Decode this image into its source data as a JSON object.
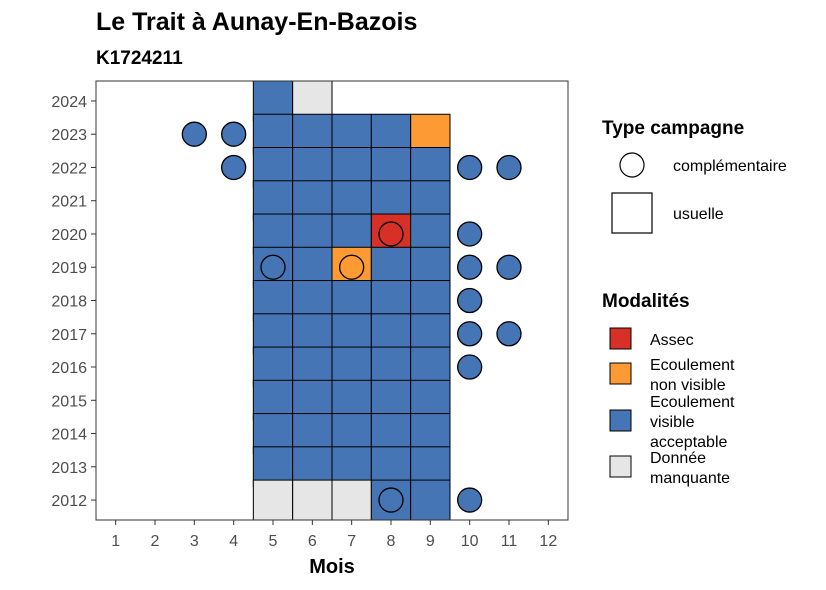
{
  "chart_data": {
    "type": "heatmap",
    "title": "Le Trait à Aunay-En-Bazois",
    "subtitle": "K1724211",
    "xlabel": "Mois",
    "ylabel": "",
    "x_ticks": [
      "1",
      "2",
      "3",
      "4",
      "5",
      "6",
      "7",
      "8",
      "9",
      "10",
      "11",
      "12"
    ],
    "y_ticks": [
      "2024",
      "2023",
      "2022",
      "2021",
      "2020",
      "2019",
      "2018",
      "2017",
      "2016",
      "2015",
      "2014",
      "2013",
      "2012"
    ],
    "xlim": [
      0.5,
      12.5
    ],
    "ylim": [
      2011.4,
      2024.6
    ],
    "grid": false,
    "legend_placement": "right",
    "legends": {
      "campaign": {
        "title": "Type campagne",
        "items": [
          {
            "key": "complementaire",
            "label": "complémentaire",
            "shape": "circle"
          },
          {
            "key": "usuelle",
            "label": "usuelle",
            "shape": "square"
          }
        ]
      },
      "modalities": {
        "title": "Modalités",
        "items": [
          {
            "key": "assec",
            "lines": [
              "Assec"
            ],
            "color": "#d73027"
          },
          {
            "key": "ecoulement_non_visible",
            "lines": [
              "Ecoulement",
              "non visible"
            ],
            "color": "#fd9a34"
          },
          {
            "key": "ecoulement_visible_acceptable",
            "lines": [
              "Ecoulement",
              "visible",
              "acceptable"
            ],
            "color": "#4575b4"
          },
          {
            "key": "donnee_manquante",
            "lines": [
              "Donnée",
              "manquante"
            ],
            "color": "#e6e6e6"
          }
        ]
      }
    },
    "usuelle": [
      {
        "year": 2024,
        "months": {
          "5": "ecoulement_visible_acceptable",
          "6": "donnee_manquante"
        }
      },
      {
        "year": 2023,
        "months": {
          "5": "ecoulement_visible_acceptable",
          "6": "ecoulement_visible_acceptable",
          "7": "ecoulement_visible_acceptable",
          "8": "ecoulement_visible_acceptable",
          "9": "ecoulement_non_visible"
        }
      },
      {
        "year": 2022,
        "months": {
          "5": "ecoulement_visible_acceptable",
          "6": "ecoulement_visible_acceptable",
          "7": "ecoulement_visible_acceptable",
          "8": "ecoulement_visible_acceptable",
          "9": "ecoulement_visible_acceptable"
        }
      },
      {
        "year": 2021,
        "months": {
          "5": "ecoulement_visible_acceptable",
          "6": "ecoulement_visible_acceptable",
          "7": "ecoulement_visible_acceptable",
          "8": "ecoulement_visible_acceptable",
          "9": "ecoulement_visible_acceptable"
        }
      },
      {
        "year": 2020,
        "months": {
          "5": "ecoulement_visible_acceptable",
          "6": "ecoulement_visible_acceptable",
          "7": "ecoulement_visible_acceptable",
          "8": "assec",
          "9": "ecoulement_visible_acceptable"
        }
      },
      {
        "year": 2019,
        "months": {
          "5": "ecoulement_visible_acceptable",
          "6": "ecoulement_visible_acceptable",
          "7": "ecoulement_non_visible",
          "8": "ecoulement_visible_acceptable",
          "9": "ecoulement_visible_acceptable"
        }
      },
      {
        "year": 2018,
        "months": {
          "5": "ecoulement_visible_acceptable",
          "6": "ecoulement_visible_acceptable",
          "7": "ecoulement_visible_acceptable",
          "8": "ecoulement_visible_acceptable",
          "9": "ecoulement_visible_acceptable"
        }
      },
      {
        "year": 2017,
        "months": {
          "5": "ecoulement_visible_acceptable",
          "6": "ecoulement_visible_acceptable",
          "7": "ecoulement_visible_acceptable",
          "8": "ecoulement_visible_acceptable",
          "9": "ecoulement_visible_acceptable"
        }
      },
      {
        "year": 2016,
        "months": {
          "5": "ecoulement_visible_acceptable",
          "6": "ecoulement_visible_acceptable",
          "7": "ecoulement_visible_acceptable",
          "8": "ecoulement_visible_acceptable",
          "9": "ecoulement_visible_acceptable"
        }
      },
      {
        "year": 2015,
        "months": {
          "5": "ecoulement_visible_acceptable",
          "6": "ecoulement_visible_acceptable",
          "7": "ecoulement_visible_acceptable",
          "8": "ecoulement_visible_acceptable",
          "9": "ecoulement_visible_acceptable"
        }
      },
      {
        "year": 2014,
        "months": {
          "5": "ecoulement_visible_acceptable",
          "6": "ecoulement_visible_acceptable",
          "7": "ecoulement_visible_acceptable",
          "8": "ecoulement_visible_acceptable",
          "9": "ecoulement_visible_acceptable"
        }
      },
      {
        "year": 2013,
        "months": {
          "5": "ecoulement_visible_acceptable",
          "6": "ecoulement_visible_acceptable",
          "7": "ecoulement_visible_acceptable",
          "8": "ecoulement_visible_acceptable",
          "9": "ecoulement_visible_acceptable"
        }
      },
      {
        "year": 2012,
        "months": {
          "5": "donnee_manquante",
          "6": "donnee_manquante",
          "7": "donnee_manquante",
          "8": "ecoulement_visible_acceptable",
          "9": "ecoulement_visible_acceptable"
        }
      }
    ],
    "complementaire": [
      {
        "year": 2023,
        "month": 3,
        "modality": "ecoulement_visible_acceptable"
      },
      {
        "year": 2023,
        "month": 4,
        "modality": "ecoulement_visible_acceptable"
      },
      {
        "year": 2022,
        "month": 4,
        "modality": "ecoulement_visible_acceptable"
      },
      {
        "year": 2022,
        "month": 10,
        "modality": "ecoulement_visible_acceptable"
      },
      {
        "year": 2022,
        "month": 11,
        "modality": "ecoulement_visible_acceptable"
      },
      {
        "year": 2020,
        "month": 8,
        "modality": "assec"
      },
      {
        "year": 2020,
        "month": 10,
        "modality": "ecoulement_visible_acceptable"
      },
      {
        "year": 2019,
        "month": 5,
        "modality": "ecoulement_visible_acceptable"
      },
      {
        "year": 2019,
        "month": 7,
        "modality": "ecoulement_non_visible"
      },
      {
        "year": 2019,
        "month": 10,
        "modality": "ecoulement_visible_acceptable"
      },
      {
        "year": 2019,
        "month": 11,
        "modality": "ecoulement_visible_acceptable"
      },
      {
        "year": 2018,
        "month": 10,
        "modality": "ecoulement_visible_acceptable"
      },
      {
        "year": 2017,
        "month": 10,
        "modality": "ecoulement_visible_acceptable"
      },
      {
        "year": 2017,
        "month": 11,
        "modality": "ecoulement_visible_acceptable"
      },
      {
        "year": 2016,
        "month": 10,
        "modality": "ecoulement_visible_acceptable"
      },
      {
        "year": 2012,
        "month": 8,
        "modality": "ecoulement_visible_acceptable"
      },
      {
        "year": 2012,
        "month": 10,
        "modality": "ecoulement_visible_acceptable"
      }
    ]
  }
}
